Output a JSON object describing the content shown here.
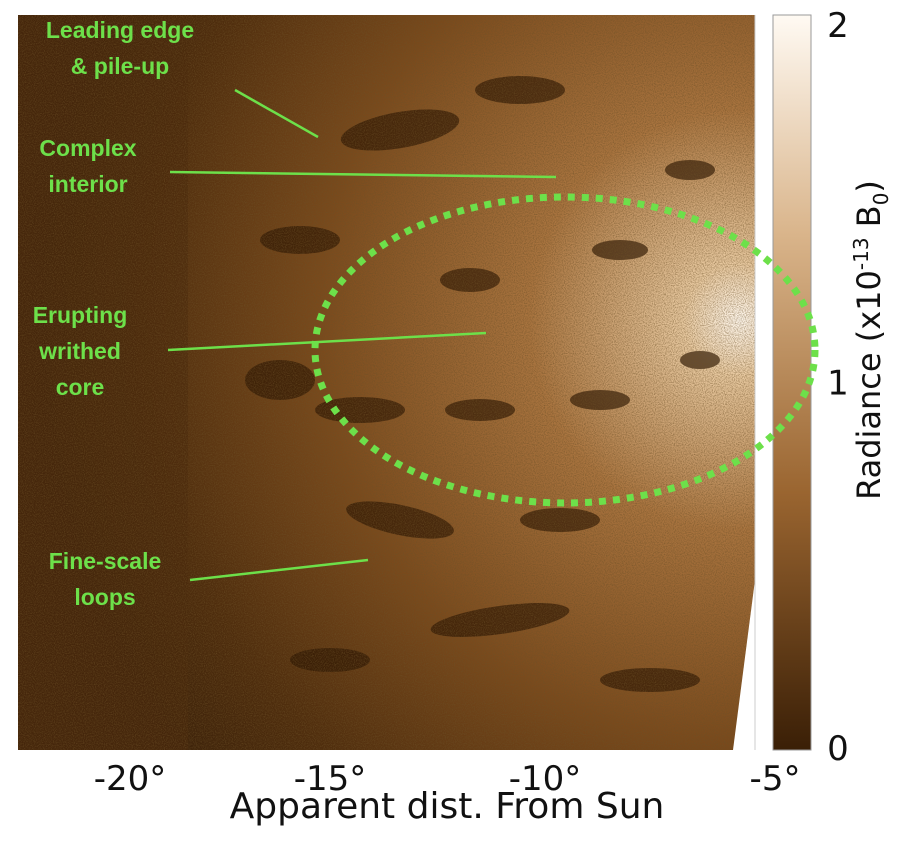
{
  "image": {
    "x_axis": {
      "label": "Apparent dist. From Sun",
      "ticks": [
        "-20°",
        "-15°",
        "-10°",
        "-5°"
      ]
    },
    "colorbar": {
      "label_parts": [
        "Radiance (x10",
        "-13",
        " B",
        "0",
        ")"
      ],
      "ticks": [
        "0",
        "1",
        "2"
      ]
    },
    "annotations": [
      {
        "lines": [
          "Leading edge",
          "& pile-up"
        ]
      },
      {
        "lines": [
          "Complex",
          "interior"
        ]
      },
      {
        "lines": [
          "Erupting",
          "writhed",
          "core"
        ]
      },
      {
        "lines": [
          "Fine-scale",
          "loops"
        ]
      }
    ]
  }
}
